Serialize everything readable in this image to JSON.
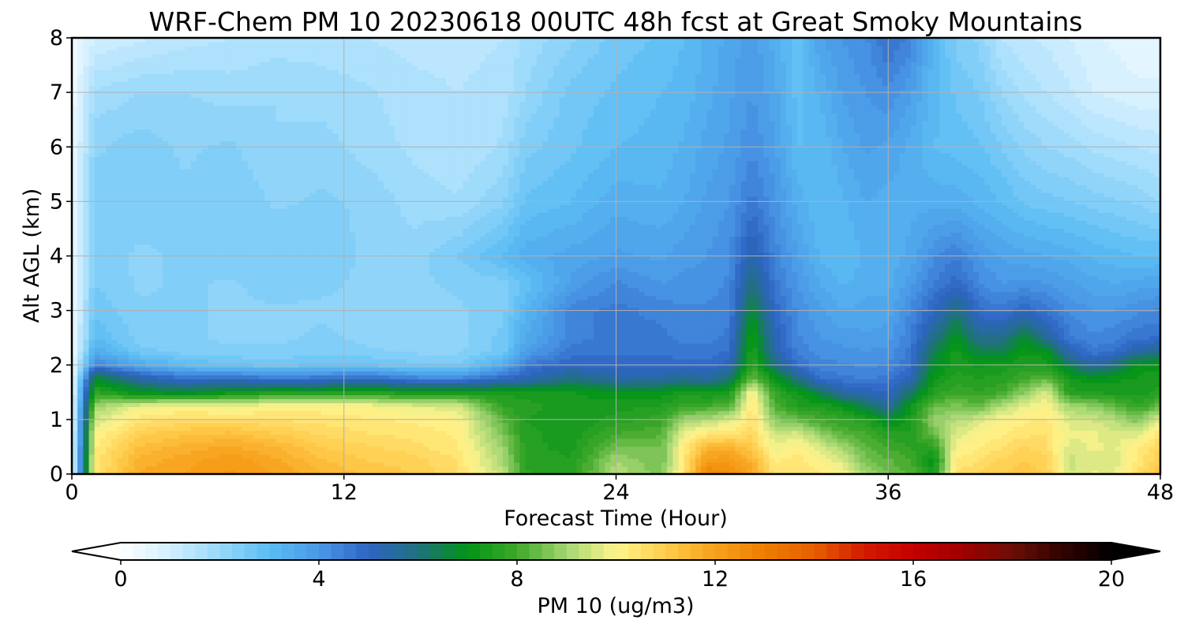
{
  "chart_data": {
    "type": "heatmap",
    "title": "WRF-Chem PM 10  20230618 00UTC 48h fcst at Great Smoky Mountains",
    "xlabel": "Forecast Time (Hour)",
    "ylabel": "Alt AGL (km)",
    "xlim": [
      0,
      48
    ],
    "ylim": [
      0,
      8
    ],
    "xticks": [
      0,
      12,
      24,
      36,
      48
    ],
    "yticks": [
      0,
      1,
      2,
      3,
      4,
      5,
      6,
      7,
      8
    ],
    "grid": true,
    "x": [
      0,
      1,
      3,
      5,
      7,
      9,
      11,
      13,
      15,
      17,
      19,
      20,
      22,
      24,
      26,
      27,
      28,
      29,
      30,
      31,
      32,
      33,
      34,
      35,
      36,
      37,
      38,
      39,
      40,
      41,
      42,
      43,
      44,
      45,
      46,
      47,
      48
    ],
    "y": [
      0,
      0.25,
      0.5,
      0.75,
      1,
      1.25,
      1.5,
      1.75,
      2,
      2.25,
      2.5,
      3,
      3.5,
      4,
      5,
      6,
      7,
      8
    ],
    "z_by_x": [
      [
        0.3,
        0.3,
        0.3,
        0.3,
        0.3,
        0.3,
        0.3,
        0.3,
        0.3,
        0.3,
        0.3,
        0.3,
        0.3,
        0.3,
        0.3,
        0.3,
        0.3,
        0.3
      ],
      [
        10.4,
        10.3,
        10.2,
        10.0,
        9.5,
        8.9,
        7.8,
        6.9,
        4.5,
        3.5,
        3.0,
        2.7,
        2.5,
        2.4,
        2.4,
        2.2,
        1.8,
        1.0
      ],
      [
        11.8,
        11.6,
        11.3,
        10.9,
        10.4,
        9.8,
        7.0,
        5.5,
        3.6,
        2.6,
        2.4,
        2.3,
        2.2,
        2.2,
        2.4,
        2.4,
        2.0,
        1.2
      ],
      [
        12.0,
        11.9,
        11.6,
        11.2,
        10.6,
        10.0,
        6.8,
        4.8,
        3.0,
        2.4,
        2.3,
        2.3,
        2.3,
        2.3,
        2.3,
        2.2,
        2.0,
        1.4
      ],
      [
        12.3,
        12.2,
        11.8,
        11.3,
        10.6,
        9.8,
        7.2,
        5.0,
        2.8,
        2.3,
        2.2,
        2.2,
        2.2,
        2.5,
        2.5,
        2.3,
        1.9,
        1.5
      ],
      [
        12.0,
        11.8,
        11.5,
        11.0,
        10.5,
        10.1,
        7.5,
        4.6,
        2.7,
        2.3,
        2.2,
        2.2,
        2.4,
        2.5,
        2.2,
        2.0,
        2.0,
        1.6
      ],
      [
        11.5,
        11.3,
        11.0,
        10.7,
        10.4,
        10.1,
        7.4,
        4.8,
        2.8,
        2.4,
        2.3,
        2.2,
        2.3,
        2.4,
        2.3,
        2.1,
        1.9,
        1.6
      ],
      [
        11.2,
        11.0,
        10.8,
        10.5,
        10.3,
        10.0,
        7.6,
        5.0,
        2.8,
        2.3,
        2.2,
        2.2,
        2.2,
        2.2,
        2.2,
        1.9,
        1.8,
        1.5
      ],
      [
        11.0,
        10.9,
        10.6,
        10.4,
        10.2,
        9.7,
        7.3,
        4.5,
        2.6,
        2.2,
        2.1,
        2.1,
        2.2,
        2.1,
        1.9,
        1.7,
        1.6,
        1.4
      ],
      [
        10.5,
        10.5,
        10.3,
        10.2,
        10.1,
        9.6,
        7.4,
        4.4,
        2.5,
        2.2,
        2.1,
        2.2,
        2.3,
        2.5,
        1.8,
        1.5,
        1.5,
        1.4
      ],
      [
        9.3,
        9.1,
        8.9,
        8.6,
        8.3,
        7.8,
        7.4,
        5.0,
        3.5,
        2.6,
        2.6,
        2.4,
        2.4,
        3.0,
        2.2,
        1.8,
        1.6,
        1.5
      ],
      [
        7.8,
        7.7,
        7.6,
        7.6,
        7.5,
        7.6,
        7.4,
        5.2,
        4.6,
        3.8,
        3.5,
        3.2,
        2.8,
        3.4,
        2.8,
        2.4,
        2.0,
        1.8
      ],
      [
        7.6,
        7.5,
        7.4,
        7.3,
        7.3,
        7.4,
        7.3,
        6.0,
        5.0,
        4.6,
        4.4,
        4.4,
        3.8,
        3.6,
        3.0,
        2.7,
        2.6,
        2.2
      ],
      [
        9.2,
        9.0,
        8.5,
        8.0,
        7.6,
        7.4,
        7.0,
        5.5,
        4.9,
        4.7,
        4.6,
        4.6,
        4.3,
        3.8,
        3.4,
        3.0,
        2.8,
        2.6
      ],
      [
        8.6,
        8.5,
        8.5,
        8.2,
        7.9,
        7.5,
        7.1,
        5.5,
        4.9,
        4.7,
        4.6,
        4.4,
        4.0,
        3.7,
        3.3,
        3.1,
        3.0,
        2.8
      ],
      [
        10.5,
        10.4,
        10.2,
        9.8,
        9.0,
        7.9,
        7.4,
        5.8,
        4.9,
        4.6,
        4.4,
        4.3,
        4.1,
        3.9,
        3.5,
        3.3,
        3.1,
        3.0
      ],
      [
        12.8,
        12.2,
        11.5,
        10.3,
        9.2,
        8.0,
        7.2,
        5.5,
        4.8,
        4.6,
        4.4,
        4.3,
        4.1,
        4.0,
        3.8,
        3.6,
        3.4,
        3.3
      ],
      [
        12.6,
        12.2,
        11.6,
        10.4,
        9.6,
        8.2,
        7.4,
        6.2,
        5.2,
        4.8,
        4.6,
        4.4,
        4.3,
        4.2,
        4.0,
        3.8,
        3.7,
        3.6
      ],
      [
        11.9,
        11.6,
        11.0,
        10.7,
        10.5,
        10.4,
        10.1,
        8.5,
        7.8,
        7.6,
        7.4,
        6.8,
        6.0,
        5.4,
        4.6,
        4.2,
        4.0,
        3.9
      ],
      [
        10.4,
        10.2,
        9.8,
        9.4,
        8.8,
        8.2,
        7.8,
        7.2,
        6.0,
        5.4,
        5.2,
        4.9,
        4.6,
        4.4,
        4.1,
        3.8,
        3.6,
        3.4
      ],
      [
        10.5,
        10.4,
        10.1,
        9.6,
        8.4,
        7.5,
        7.3,
        6.0,
        4.8,
        4.4,
        4.3,
        4.2,
        4.0,
        3.8,
        3.4,
        3.0,
        2.9,
        2.8
      ],
      [
        10.3,
        10.0,
        9.6,
        8.8,
        8.0,
        7.5,
        6.5,
        4.8,
        4.3,
        4.2,
        4.0,
        3.8,
        3.5,
        3.2,
        3.0,
        3.0,
        3.3,
        3.7
      ],
      [
        10.0,
        9.6,
        9.0,
        8.2,
        7.8,
        7.2,
        5.5,
        4.6,
        4.3,
        4.1,
        3.9,
        3.5,
        3.2,
        3.0,
        3.2,
        3.5,
        3.8,
        4.0
      ],
      [
        9.0,
        8.6,
        8.3,
        8.0,
        7.6,
        6.4,
        5.2,
        4.5,
        4.2,
        4.0,
        3.8,
        3.6,
        3.4,
        3.3,
        3.5,
        3.8,
        4.0,
        4.2
      ],
      [
        8.5,
        8.3,
        8.0,
        7.6,
        6.8,
        5.6,
        5.0,
        4.6,
        4.3,
        4.1,
        3.9,
        3.6,
        3.4,
        3.3,
        3.4,
        3.7,
        4.2,
        4.8
      ],
      [
        8.2,
        8.0,
        7.7,
        7.5,
        7.4,
        7.2,
        6.2,
        5.2,
        4.8,
        4.6,
        4.5,
        4.3,
        3.9,
        3.6,
        3.4,
        3.4,
        3.8,
        4.4
      ],
      [
        7.4,
        7.0,
        7.6,
        8.5,
        8.8,
        8.4,
        7.6,
        7.2,
        6.8,
        6.4,
        5.8,
        5.0,
        4.5,
        4.2,
        3.4,
        3.0,
        3.1,
        3.2
      ],
      [
        10.5,
        10.3,
        10.0,
        9.6,
        9.2,
        8.6,
        8.0,
        7.6,
        7.5,
        7.4,
        7.0,
        6.0,
        4.9,
        4.5,
        3.4,
        2.9,
        2.7,
        2.4
      ],
      [
        10.8,
        10.5,
        10.2,
        10.0,
        9.6,
        8.4,
        7.8,
        7.5,
        7.2,
        6.5,
        5.8,
        4.8,
        4.3,
        4.0,
        3.2,
        2.8,
        2.5,
        2.2
      ],
      [
        11.0,
        10.8,
        10.5,
        10.2,
        10.0,
        9.2,
        8.0,
        7.6,
        7.4,
        6.5,
        5.8,
        4.6,
        4.0,
        3.7,
        3.0,
        2.5,
        2.0,
        1.5
      ],
      [
        11.2,
        11.0,
        10.8,
        10.4,
        10.2,
        9.8,
        8.8,
        8.0,
        7.5,
        7.2,
        6.8,
        5.0,
        4.1,
        3.6,
        2.7,
        2.2,
        1.7,
        1.3
      ],
      [
        11.0,
        10.8,
        10.6,
        10.5,
        10.3,
        10.0,
        9.6,
        8.4,
        7.5,
        7.0,
        5.6,
        4.6,
        4.0,
        3.5,
        2.6,
        2.0,
        1.5,
        1.2
      ],
      [
        9.5,
        9.4,
        9.6,
        9.8,
        9.6,
        9.0,
        7.6,
        7.3,
        6.4,
        5.2,
        4.6,
        4.2,
        3.8,
        3.4,
        2.5,
        1.9,
        1.3,
        1.0
      ],
      [
        9.8,
        9.7,
        9.8,
        9.8,
        9.5,
        8.8,
        7.5,
        7.1,
        5.5,
        4.6,
        4.3,
        4.0,
        3.6,
        3.2,
        2.4,
        1.7,
        1.0,
        0.8
      ],
      [
        9.7,
        9.6,
        9.7,
        9.6,
        9.2,
        8.4,
        7.4,
        7.2,
        6.0,
        4.8,
        4.4,
        4.0,
        3.5,
        3.1,
        2.3,
        1.6,
        0.9,
        0.7
      ],
      [
        10.6,
        10.3,
        10.2,
        9.6,
        8.6,
        7.8,
        7.4,
        7.3,
        7.1,
        5.5,
        4.7,
        4.2,
        3.6,
        3.0,
        2.2,
        1.5,
        0.8,
        0.6
      ],
      [
        11.2,
        11.0,
        10.8,
        10.4,
        9.8,
        8.4,
        7.6,
        7.4,
        7.2,
        5.8,
        4.8,
        4.3,
        3.7,
        3.0,
        2.0,
        1.4,
        0.8,
        0.6
      ]
    ],
    "colorbar": {
      "label": "PM 10  (ug/m3)",
      "range": [
        0,
        20
      ],
      "ticks": [
        0,
        4,
        8,
        12,
        16,
        20
      ],
      "extend": "both",
      "under_color": "#ffffff",
      "over_color": "#000000",
      "color_stops": [
        [
          0,
          "#ffffff"
        ],
        [
          1,
          "#d2efff"
        ],
        [
          2,
          "#98d8fa"
        ],
        [
          3,
          "#5bbcf4"
        ],
        [
          4,
          "#4a98e6"
        ],
        [
          5,
          "#2e64c2"
        ],
        [
          6,
          "#21707e"
        ],
        [
          7,
          "#009417"
        ],
        [
          8,
          "#3fa72a"
        ],
        [
          9,
          "#a4d672"
        ],
        [
          10,
          "#fff58e"
        ],
        [
          11,
          "#ffcc4c"
        ],
        [
          12,
          "#f7a11c"
        ],
        [
          13,
          "#ee7e00"
        ],
        [
          14,
          "#e65e00"
        ],
        [
          15,
          "#d31a00"
        ],
        [
          16,
          "#c40000"
        ],
        [
          17,
          "#9f0000"
        ],
        [
          18,
          "#6a0e08"
        ],
        [
          19,
          "#310300"
        ],
        [
          20,
          "#000000"
        ]
      ]
    }
  }
}
